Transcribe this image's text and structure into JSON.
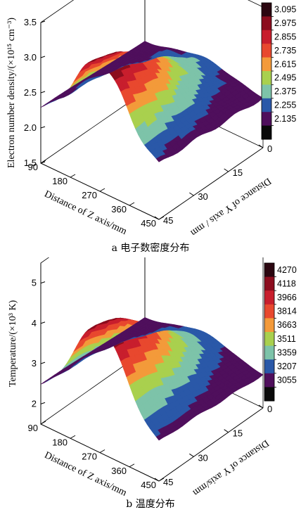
{
  "chart_data": [
    {
      "type": "surface",
      "caption_letter": "a",
      "caption_text": "电子数密度分布",
      "zlabel": "Electron number density/(×10¹⁵ cm⁻³)",
      "xlabel": "Distance of Z axis/mm",
      "ylabel": "Distance of Y axis / mm",
      "z_ticks": [
        "1.5",
        "2.0",
        "2.5",
        "3.0",
        "3.5"
      ],
      "x_ticks": [
        "90",
        "180",
        "270",
        "360",
        "450"
      ],
      "y_ticks": [
        "0",
        "15",
        "30",
        "45"
      ],
      "zlim": [
        1.5,
        3.5
      ],
      "xlim": [
        90,
        450
      ],
      "ylim": [
        0,
        45
      ],
      "colorbar_ticks": [
        "3.095",
        "2.975",
        "2.855",
        "2.735",
        "2.615",
        "2.495",
        "2.375",
        "2.255",
        "2.135"
      ],
      "colorbar_colors": [
        "#2b0610",
        "#8c0d1e",
        "#c81e2d",
        "#e8482e",
        "#f39a3a",
        "#a9d04e",
        "#7dc3a9",
        "#2a58a8",
        "#4f0f5c",
        "#0a0a0a"
      ],
      "surface": {
        "base": 2.2,
        "peak": 3.33,
        "peak_x": 270,
        "peak_y": 0
      }
    },
    {
      "type": "surface",
      "caption_letter": "b",
      "caption_text": "温度分布",
      "zlabel": "Temperature/(×10³ K)",
      "xlabel": "Distance of Z axis/mm",
      "ylabel": "Distance of Y axis/mm",
      "z_ticks": [
        "2",
        "3",
        "4",
        "5"
      ],
      "x_ticks": [
        "90",
        "180",
        "270",
        "360",
        "450"
      ],
      "y_ticks": [
        "0",
        "15",
        "30",
        "45"
      ],
      "zlim": [
        1.5,
        5.5
      ],
      "xlim": [
        90,
        450
      ],
      "ylim": [
        0,
        45
      ],
      "colorbar_ticks": [
        "4270",
        "4118",
        "3966",
        "3814",
        "3663",
        "3511",
        "3359",
        "3207",
        "3055"
      ],
      "colorbar_colors": [
        "#2b0610",
        "#8c0d1e",
        "#c81e2d",
        "#e8482e",
        "#f39a3a",
        "#a9d04e",
        "#7dc3a9",
        "#2a58a8",
        "#4f0f5c",
        "#0a0a0a"
      ],
      "surface": {
        "base": 2.3,
        "peak": 4.6,
        "peak_x": 270,
        "peak_y": 0
      }
    }
  ]
}
